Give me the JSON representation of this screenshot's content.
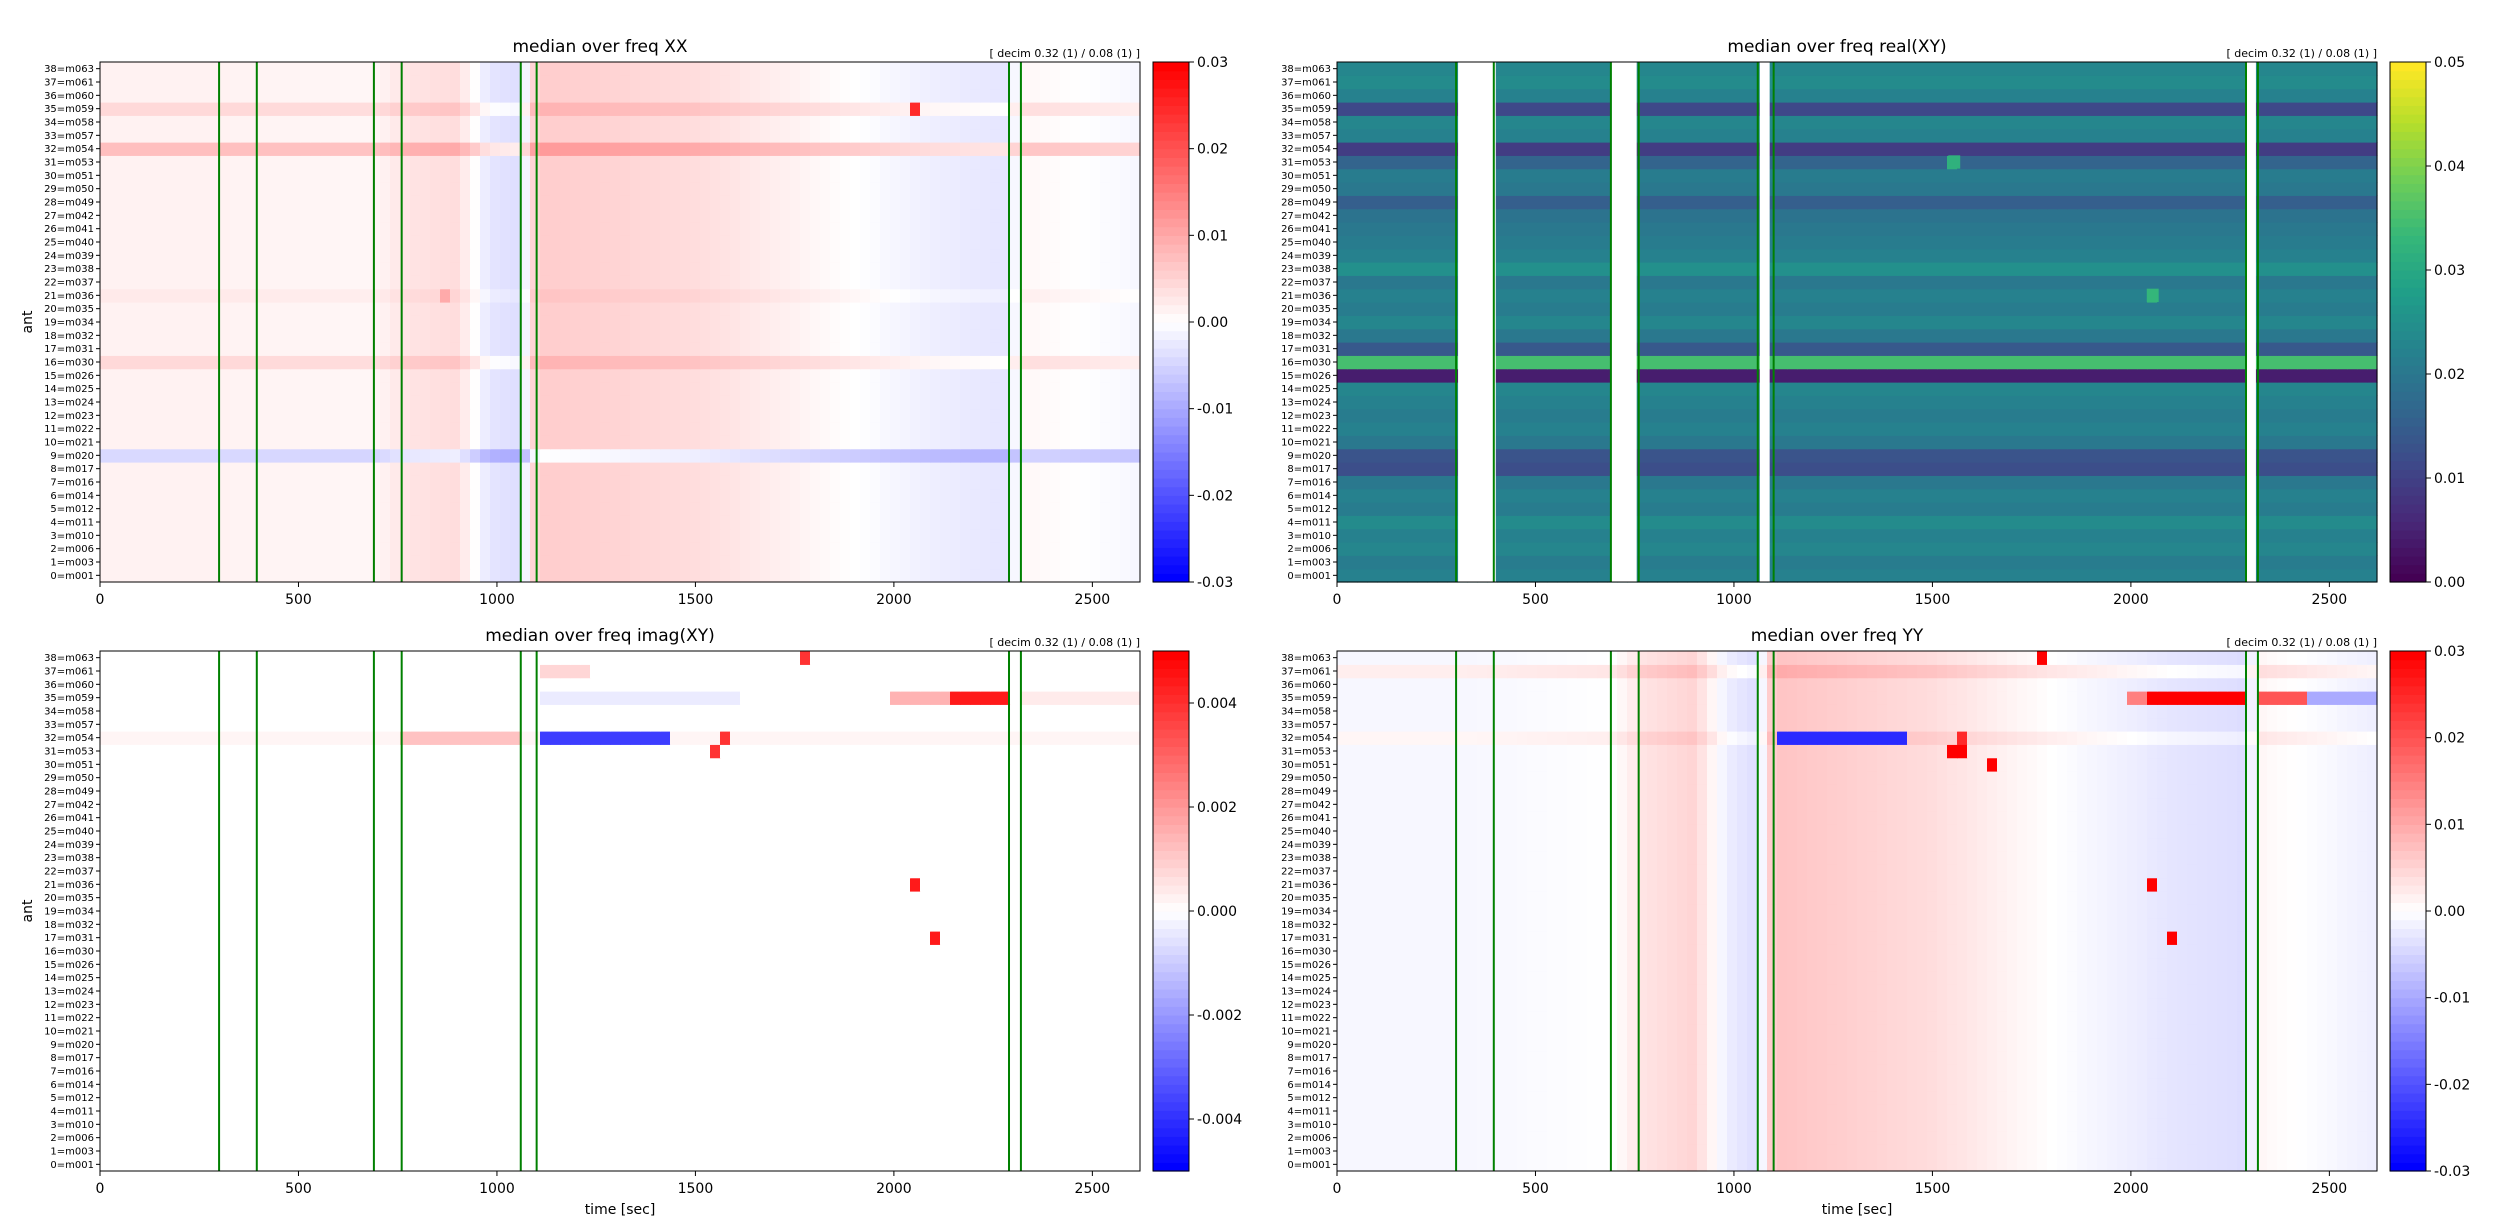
{
  "chart_data": [
    {
      "type": "heatmap",
      "title": "median over freq   XX",
      "note": "[ decim 0.32 (1) / 0.08 (1) ]",
      "xlabel": "",
      "ylabel": "ant",
      "xlim": [
        0,
        2620
      ],
      "xticks": [
        "0",
        "500",
        "1000",
        "1500",
        "2000",
        "2500"
      ],
      "colorbar": {
        "colormap": "bwr",
        "range": [
          -0.03,
          0.03
        ],
        "ticks": [
          "-0.03",
          "-0.02",
          "-0.01",
          "0.00",
          "0.01",
          "0.02",
          "0.03"
        ]
      },
      "segment_boundaries": [
        300,
        395,
        690,
        760,
        1060,
        1100,
        2290,
        2320
      ],
      "base_profile": [
        [
          0,
          0.0015
        ],
        [
          300,
          0.0015
        ],
        [
          700,
          0.001
        ],
        [
          760,
          0.003
        ],
        [
          900,
          0.004
        ],
        [
          980,
          -0.003
        ],
        [
          1060,
          -0.004
        ],
        [
          1100,
          0.006
        ],
        [
          1500,
          0.004
        ],
        [
          1800,
          0.001
        ],
        [
          2100,
          -0.002
        ],
        [
          2290,
          -0.003
        ],
        [
          2320,
          0.001
        ],
        [
          2620,
          -0.001
        ]
      ],
      "row_offsets": {
        "32": 0.006,
        "35": 0.003,
        "16": 0.003,
        "9": -0.006,
        "21": 0.001
      },
      "blobs": [
        {
          "row": 35,
          "t0": 2040,
          "t1": 2060,
          "v": 0.025
        },
        {
          "row": 21,
          "t0": 850,
          "t1": 870,
          "v": 0.01
        }
      ]
    },
    {
      "type": "heatmap",
      "title": "median over freq   real(XY)",
      "note": "[ decim 0.32 (1) / 0.08 (1) ]",
      "xlabel": "",
      "ylabel": "",
      "xlim": [
        0,
        2620
      ],
      "xticks": [
        "0",
        "500",
        "1000",
        "1500",
        "2000",
        "2500"
      ],
      "colorbar": {
        "colormap": "viridis",
        "range": [
          0.0,
          0.05
        ],
        "ticks": [
          "0.00",
          "0.01",
          "0.02",
          "0.03",
          "0.04",
          "0.05"
        ]
      },
      "segment_boundaries": [
        300,
        395,
        690,
        760,
        1060,
        1100,
        2290,
        2320
      ],
      "gaps": [
        [
          305,
          400
        ],
        [
          690,
          755
        ],
        [
          1065,
          1090
        ],
        [
          2290,
          2315
        ]
      ],
      "row_values": [
        0.022,
        0.021,
        0.023,
        0.022,
        0.024,
        0.021,
        0.022,
        0.02,
        0.012,
        0.013,
        0.02,
        0.022,
        0.021,
        0.022,
        0.023,
        0.004,
        0.035,
        0.014,
        0.02,
        0.023,
        0.021,
        0.022,
        0.02,
        0.025,
        0.022,
        0.021,
        0.02,
        0.019,
        0.015,
        0.02,
        0.021,
        0.016,
        0.009,
        0.022,
        0.023,
        0.011,
        0.022,
        0.024,
        0.023
      ],
      "blobs": [
        {
          "row": 31,
          "t0": 1540,
          "t1": 1570,
          "v": 0.032
        },
        {
          "row": 21,
          "t0": 2040,
          "t1": 2070,
          "v": 0.033
        }
      ]
    },
    {
      "type": "heatmap",
      "title": "median over freq   imag(XY)",
      "note": "[ decim 0.32 (1) / 0.08 (1) ]",
      "xlabel": "time [sec]",
      "ylabel": "ant",
      "xlim": [
        0,
        2620
      ],
      "xticks": [
        "0",
        "500",
        "1000",
        "1500",
        "2000",
        "2500"
      ],
      "colorbar": {
        "colormap": "bwr",
        "range": [
          -0.005,
          0.005
        ],
        "ticks": [
          "-0.004",
          "-0.002",
          "0.000",
          "0.002",
          "0.004"
        ]
      },
      "segment_boundaries": [
        300,
        395,
        690,
        760,
        1060,
        1100,
        2290,
        2320
      ],
      "row_offsets": {
        "32": 0.0002
      },
      "blobs": [
        {
          "row": 32,
          "t0": 1100,
          "t1": 1440,
          "v": -0.0038
        },
        {
          "row": 32,
          "t0": 760,
          "t1": 1050,
          "v": 0.0012
        },
        {
          "row": 37,
          "t0": 1100,
          "t1": 1230,
          "v": 0.0008
        },
        {
          "row": 35,
          "t0": 1100,
          "t1": 1600,
          "v": -0.0004
        },
        {
          "row": 35,
          "t0": 2000,
          "t1": 2150,
          "v": 0.0015
        },
        {
          "row": 35,
          "t0": 2150,
          "t1": 2290,
          "v": 0.0045
        },
        {
          "row": 35,
          "t0": 2320,
          "t1": 2620,
          "v": 0.0004
        },
        {
          "row": 31,
          "t0": 1530,
          "t1": 1570,
          "v": 0.004
        },
        {
          "row": 32,
          "t0": 1570,
          "t1": 1585,
          "v": 0.004
        },
        {
          "row": 21,
          "t0": 2030,
          "t1": 2060,
          "v": 0.0045
        },
        {
          "row": 17,
          "t0": 2090,
          "t1": 2110,
          "v": 0.0045
        },
        {
          "row": 38,
          "t0": 1770,
          "t1": 1780,
          "v": 0.004
        }
      ]
    },
    {
      "type": "heatmap",
      "title": "median over freq   YY",
      "note": "[ decim 0.32 (1) / 0.08 (1) ]",
      "xlabel": "time [sec]",
      "ylabel": "",
      "xlim": [
        0,
        2620
      ],
      "xticks": [
        "0",
        "500",
        "1000",
        "1500",
        "2000",
        "2500"
      ],
      "colorbar": {
        "colormap": "bwr",
        "range": [
          -0.03,
          0.03
        ],
        "ticks": [
          "-0.03",
          "-0.02",
          "-0.01",
          "0.00",
          "0.01",
          "0.02",
          "0.03"
        ]
      },
      "segment_boundaries": [
        300,
        395,
        690,
        760,
        1060,
        1100,
        2290,
        2320
      ],
      "base_profile": [
        [
          0,
          -0.001
        ],
        [
          300,
          -0.001
        ],
        [
          700,
          0.0
        ],
        [
          760,
          0.003
        ],
        [
          900,
          0.005
        ],
        [
          980,
          -0.002
        ],
        [
          1060,
          -0.004
        ],
        [
          1100,
          0.007
        ],
        [
          1500,
          0.004
        ],
        [
          1800,
          0.0
        ],
        [
          2100,
          -0.003
        ],
        [
          2290,
          -0.004
        ],
        [
          2320,
          0.001
        ],
        [
          2620,
          -0.002
        ]
      ],
      "row_offsets": {
        "37": 0.003,
        "32": 0.002
      },
      "blobs": [
        {
          "row": 32,
          "t0": 1100,
          "t1": 1440,
          "v": -0.025
        },
        {
          "row": 35,
          "t0": 1980,
          "t1": 2040,
          "v": 0.015
        },
        {
          "row": 35,
          "t0": 2040,
          "t1": 2290,
          "v": 0.03
        },
        {
          "row": 35,
          "t0": 2320,
          "t1": 2450,
          "v": 0.02
        },
        {
          "row": 35,
          "t0": 2450,
          "t1": 2620,
          "v": -0.01
        },
        {
          "row": 31,
          "t0": 1530,
          "t1": 1580,
          "v": 0.03
        },
        {
          "row": 30,
          "t0": 1640,
          "t1": 1665,
          "v": 0.03
        },
        {
          "row": 21,
          "t0": 2030,
          "t1": 2070,
          "v": 0.03
        },
        {
          "row": 17,
          "t0": 2090,
          "t1": 2110,
          "v": 0.03
        },
        {
          "row": 38,
          "t0": 1770,
          "t1": 1780,
          "v": 0.03
        },
        {
          "row": 32,
          "t0": 1570,
          "t1": 1585,
          "v": 0.025
        }
      ]
    }
  ],
  "antennas": [
    "0=m001",
    "1=m003",
    "2=m006",
    "3=m010",
    "4=m011",
    "5=m012",
    "6=m014",
    "7=m016",
    "8=m017",
    "9=m020",
    "10=m021",
    "11=m022",
    "12=m023",
    "13=m024",
    "14=m025",
    "15=m026",
    "16=m030",
    "17=m031",
    "18=m032",
    "19=m034",
    "20=m035",
    "21=m036",
    "22=m037",
    "23=m038",
    "24=m039",
    "25=m040",
    "26=m041",
    "27=m042",
    "28=m049",
    "29=m050",
    "30=m051",
    "31=m053",
    "32=m054",
    "33=m057",
    "34=m058",
    "35=m059",
    "36=m060",
    "37=m061",
    "38=m063"
  ],
  "colors": {
    "segment_line": "#008000"
  }
}
